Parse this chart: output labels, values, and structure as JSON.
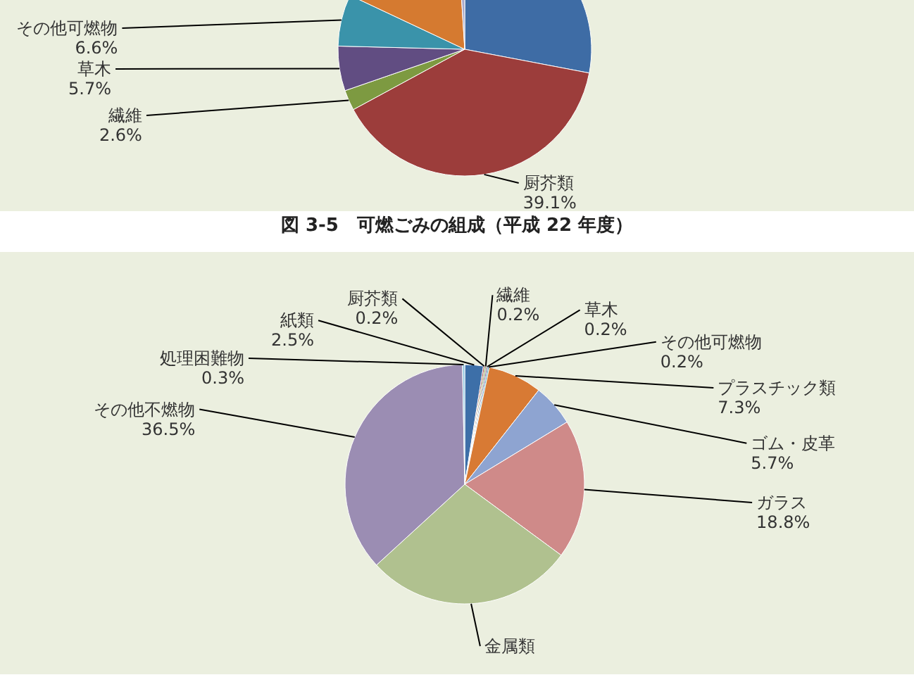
{
  "chart_data": [
    {
      "type": "pie",
      "title": "図 3-5　可燃ごみの組成（平成 22 年度）",
      "legend": false,
      "categories": [
        null,
        "厨芥類",
        "繊維",
        "草木",
        "その他可燃物",
        null,
        null
      ],
      "values": [
        28,
        39.1,
        2.6,
        5.7,
        6.6,
        17,
        1
      ],
      "value_labels": [
        null,
        "39.1%",
        "2.6%",
        "5.7%",
        "6.6%",
        null,
        null
      ],
      "colors": [
        "#3e6ca5",
        "#9c3d3b",
        "#7d9a41",
        "#614d82",
        "#3a93aa",
        "#d57a30",
        "#a9a9c9"
      ]
    },
    {
      "type": "pie",
      "legend": false,
      "categories": [
        "紙類",
        "厨芥類",
        "繊維",
        "草木",
        "その他可燃物",
        "プラスチック類",
        "ゴム・皮革",
        "ガラス",
        "金属類",
        "その他不燃物",
        "処理困難物"
      ],
      "values": [
        2.5,
        0.2,
        0.2,
        0.2,
        0.2,
        7.3,
        5.7,
        18.8,
        28.1,
        36.5,
        0.3
      ],
      "value_labels": [
        "2.5%",
        "0.2%",
        "0.2%",
        "0.2%",
        "0.2%",
        "7.3%",
        "5.7%",
        "18.8%",
        null,
        "36.5%",
        "0.3%"
      ],
      "colors": [
        "#3d6fa8",
        "#9b3f3c",
        "#7f9a45",
        "#6a5389",
        "#3a98b0",
        "#d87a34",
        "#8ea4d1",
        "#cf8a89",
        "#b0c18f",
        "#9b8db3",
        "#8fc6e0"
      ]
    }
  ]
}
